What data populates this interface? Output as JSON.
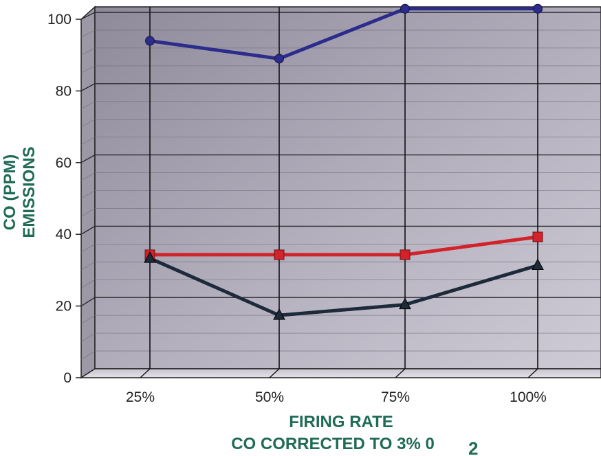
{
  "chart_data": {
    "type": "line",
    "categories": [
      "25%",
      "50%",
      "75%",
      "100%"
    ],
    "ylim": [
      0,
      100
    ],
    "yticks": [
      0,
      20,
      40,
      60,
      80,
      100
    ],
    "grid": true,
    "ylabel_line1": "CO (PPM)",
    "ylabel_line2": "EMISSIONS",
    "xlabel_line1": "FIRING RATE",
    "xlabel_line2": "CO CORRECTED TO 3% 0",
    "xlabel_subscript": "2",
    "series": [
      {
        "marker": "circle",
        "color": "#2b2c8c",
        "values": [
          92,
          87,
          101,
          101
        ]
      },
      {
        "marker": "square",
        "color": "#d2232a",
        "values": [
          32,
          32,
          32,
          37
        ]
      },
      {
        "marker": "triangle",
        "color": "#1c2a3a",
        "values": [
          31,
          15,
          18,
          29
        ]
      }
    ]
  }
}
